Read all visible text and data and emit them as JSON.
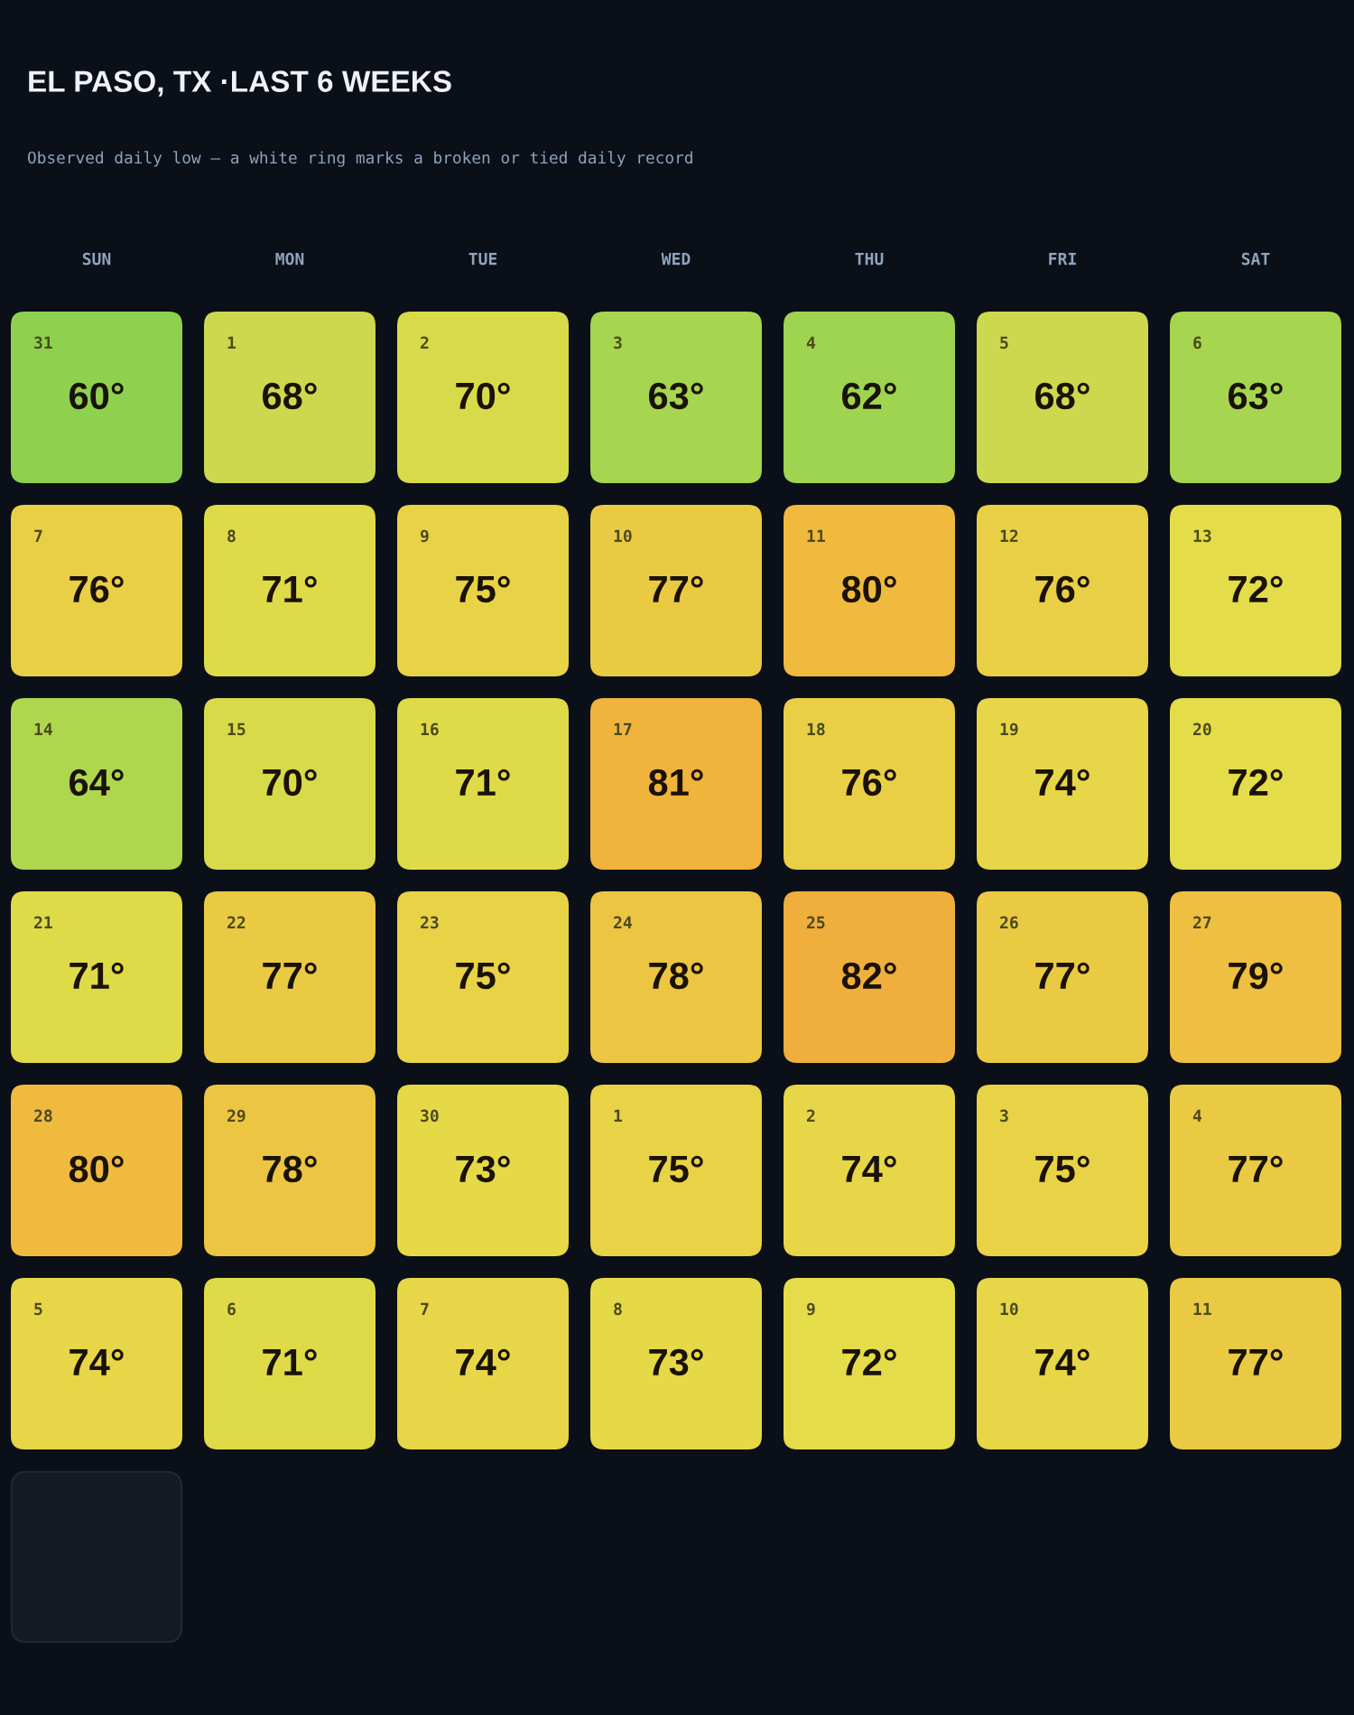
{
  "chart_data": {
    "type": "heatmap",
    "title": "EL PASO, TX ·LAST 6 WEEKS",
    "subtitle": "Observed daily low — a white ring marks a broken or tied daily record",
    "categories": [
      "SUN",
      "MON",
      "TUE",
      "WED",
      "THU",
      "FRI",
      "SAT"
    ],
    "y_categories": [
      null,
      null,
      null,
      null,
      null,
      null
    ],
    "cells": [
      [
        60,
        68,
        70,
        63,
        62,
        68,
        63
      ],
      [
        76,
        71,
        75,
        77,
        80,
        76,
        72
      ],
      [
        64,
        70,
        71,
        81,
        76,
        74,
        72
      ],
      [
        71,
        77,
        75,
        78,
        82,
        77,
        79
      ],
      [
        80,
        78,
        73,
        75,
        74,
        75,
        77
      ],
      [
        74,
        71,
        74,
        73,
        72,
        74,
        77
      ]
    ],
    "cell_labels": [
      [
        "60°",
        "68°",
        "70°",
        "63°",
        "62°",
        "68°",
        "63°"
      ],
      [
        "76°",
        "71°",
        "75°",
        "77°",
        "80°",
        "76°",
        "72°"
      ],
      [
        "64°",
        "70°",
        "71°",
        "81°",
        "76°",
        "74°",
        "72°"
      ],
      [
        "71°",
        "77°",
        "75°",
        "78°",
        "82°",
        "77°",
        "79°"
      ],
      [
        "80°",
        "78°",
        "73°",
        "75°",
        "74°",
        "75°",
        "77°"
      ],
      [
        "74°",
        "71°",
        "74°",
        "73°",
        "72°",
        "74°",
        "77°"
      ]
    ],
    "annotations": [
      "31",
      "1",
      "2",
      "3",
      "4",
      "5",
      "6",
      "7",
      "8",
      "9",
      "10",
      "11",
      "12",
      "13",
      "14",
      "15",
      "16",
      "17",
      "18",
      "19",
      "20",
      "21",
      "22",
      "23",
      "24",
      "25",
      "26",
      "27",
      "28",
      "29",
      "30",
      "1",
      "2",
      "3",
      "4",
      "5",
      "6",
      "7",
      "8",
      "9",
      "10",
      "11"
    ]
  }
}
